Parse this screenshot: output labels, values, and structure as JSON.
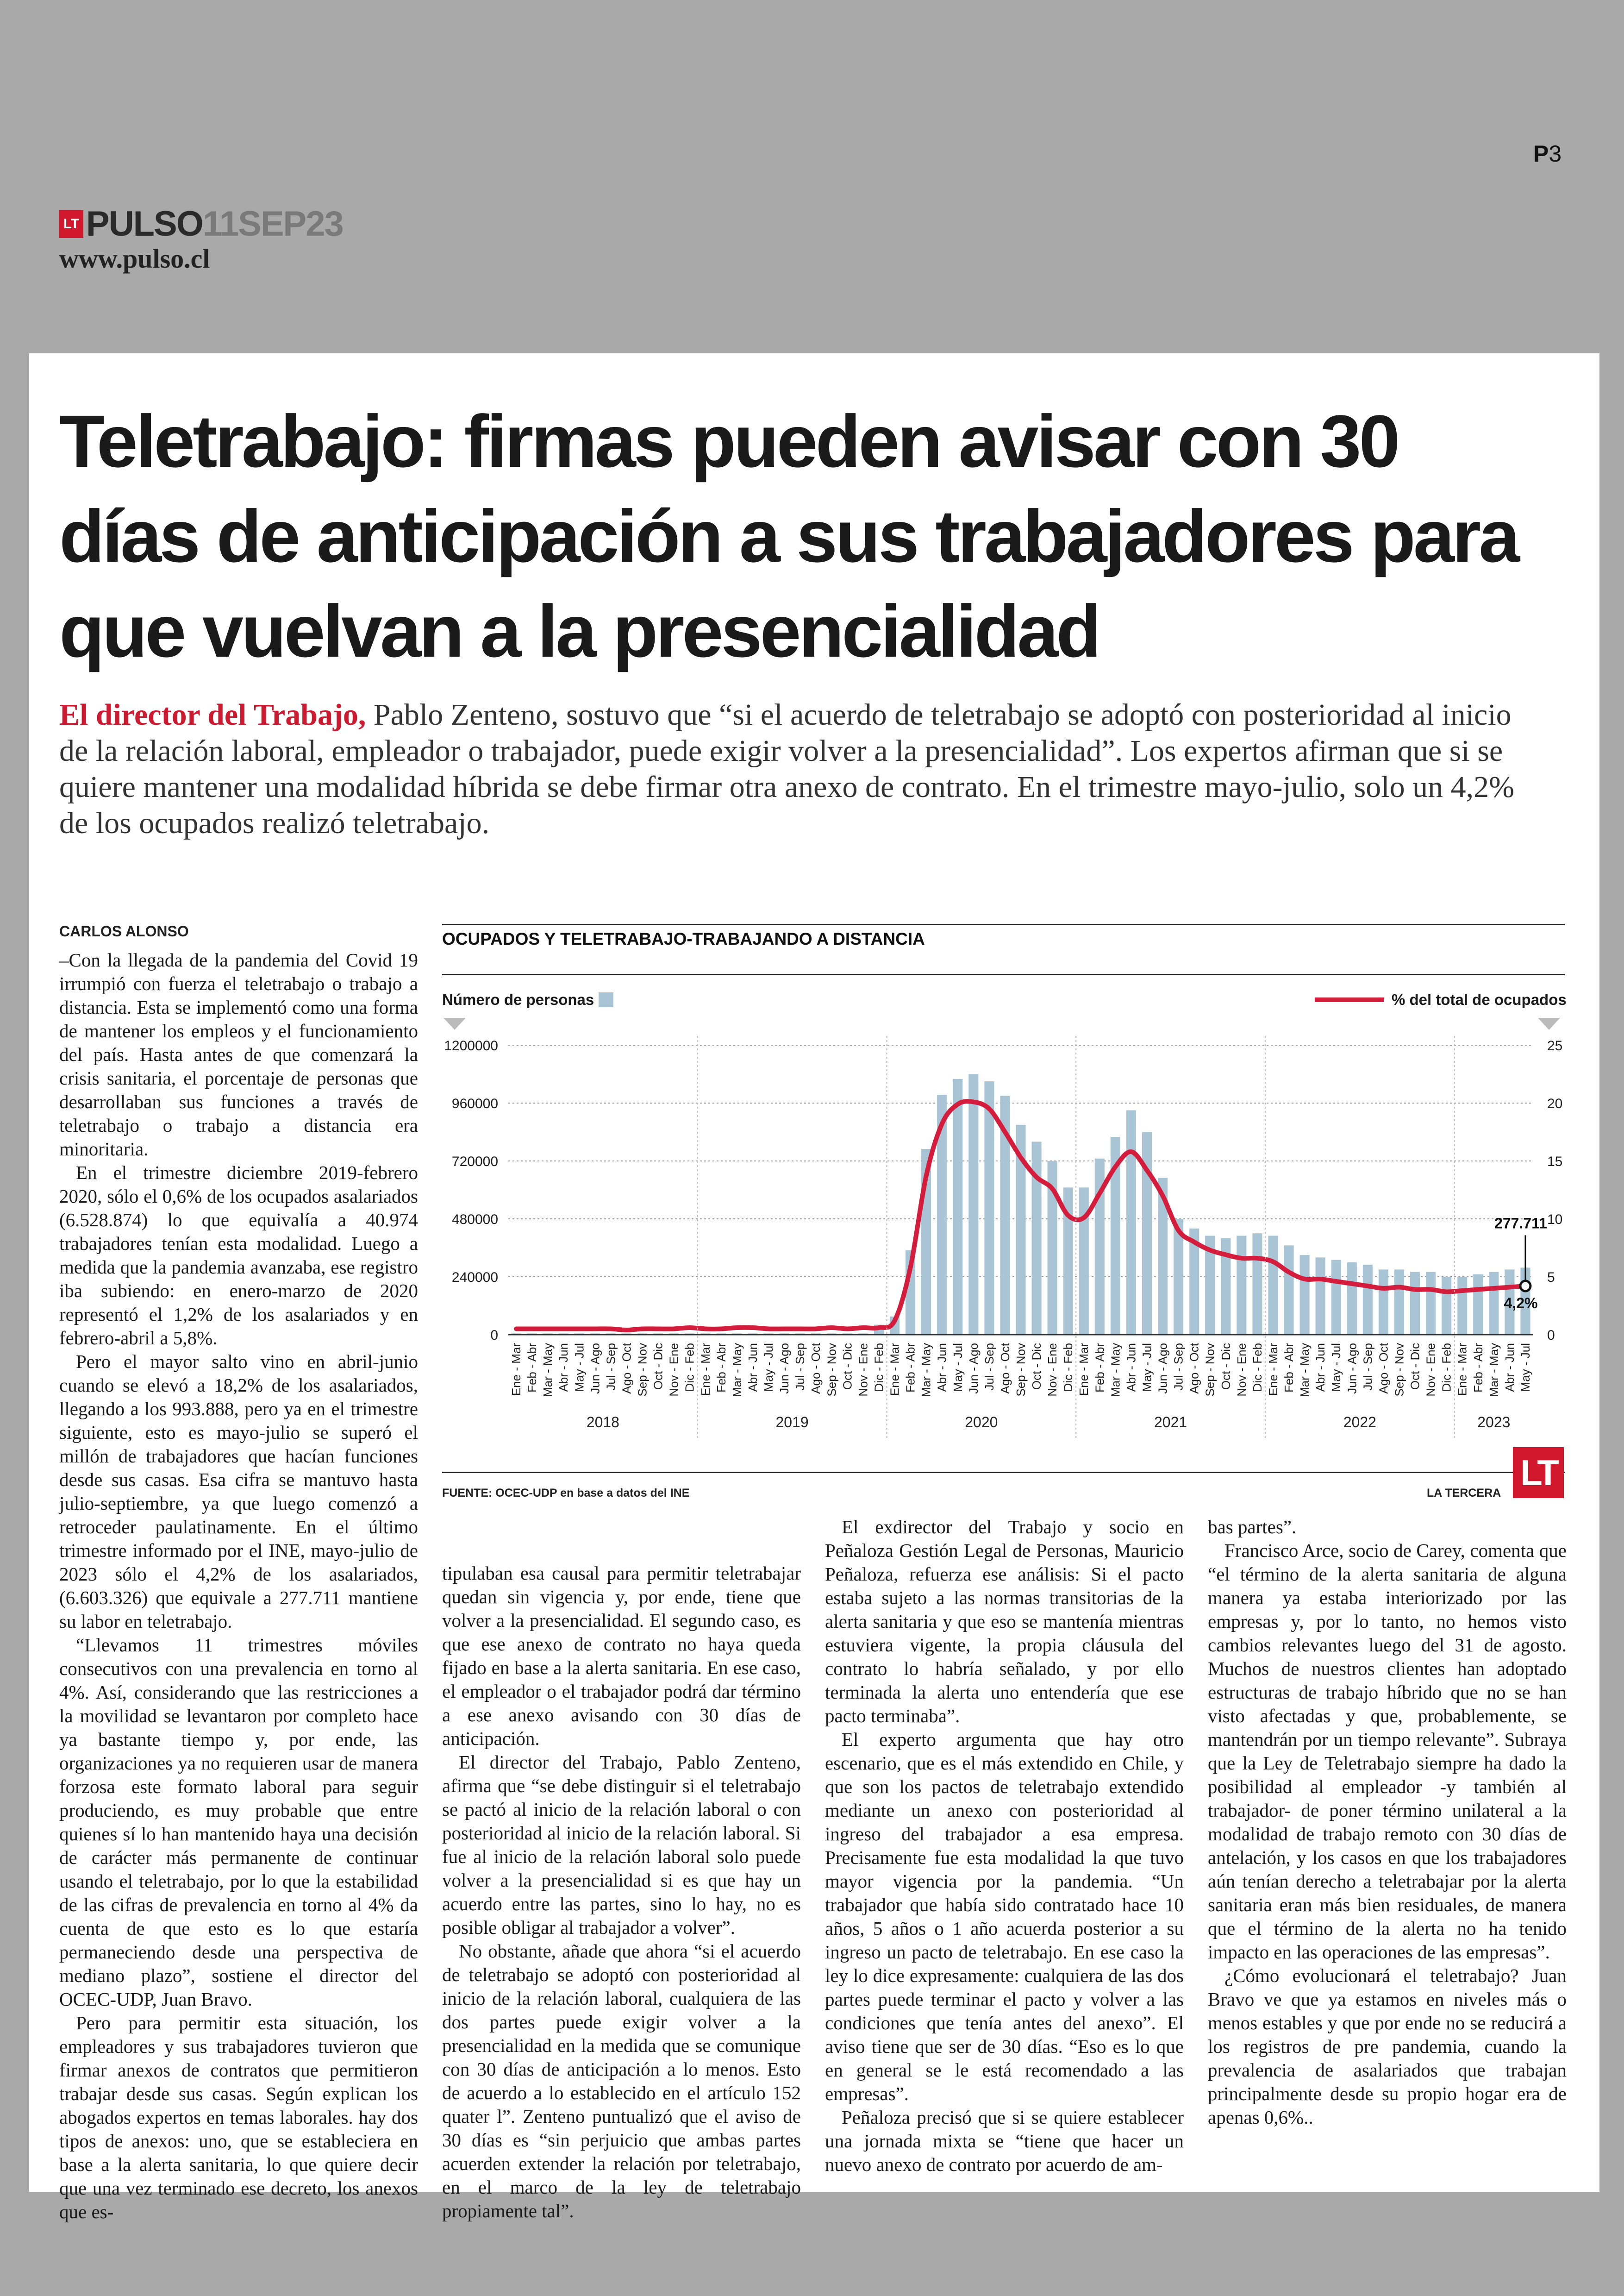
{
  "page": {
    "number_prefix": "P",
    "number": "3"
  },
  "masthead": {
    "logo": "LT",
    "brand": "PULSO",
    "date": "11SEP23",
    "url": "www.pulso.cl"
  },
  "article": {
    "headline": "Teletrabajo: firmas pueden avisar con 30 días de anticipación a sus trabajadores para que vuelvan a la presencialidad",
    "lead_highlight": "El director del Trabajo,",
    "lead_rest": " Pablo Zenteno, sostuvo que “si el acuerdo de teletrabajo se adoptó con posterioridad al inicio de la relación laboral, empleador o trabajador, puede exigir volver a la presencialidad”. Los expertos afirman que si se quiere mantener una modalidad híbrida se debe firmar otra anexo de contrato. En el trimestre mayo-julio, solo un 4,2% de los ocupados realizó teletrabajo.",
    "byline": "CARLOS ALONSO",
    "col1": [
      "–Con la llegada de la pandemia del Covid 19 irrumpió con fuerza el teletrabajo o trabajo a distancia. Esta se implementó como una forma de mantener los empleos y el funcionamiento del país. Hasta antes de que comenzará la crisis sanitaria, el porcentaje de personas que desarrollaban sus funciones a través de teletrabajo o trabajo a distancia era minoritaria.",
      "En el trimestre diciembre 2019-febrero 2020, sólo el 0,6% de los ocupados asalariados (6.528.874) lo que equivalía a 40.974 trabajadores tenían esta modalidad. Luego a medida que la pandemia avanzaba, ese registro iba subiendo: en enero-marzo de 2020 representó el 1,2% de los asalariados y en febrero-abril a 5,8%.",
      "Pero el mayor salto vino en abril-junio cuando se elevó a 18,2% de los asalariados, llegando a los 993.888, pero ya en el trimestre siguiente, esto es mayo-julio se superó el millón de trabajadores que hacían funciones desde sus casas. Esa cifra se mantuvo hasta julio-septiembre, ya que luego comenzó a retroceder paulatinamente. En el último trimestre informado por el INE, mayo-julio de 2023 sólo el 4,2% de los asalariados, (6.603.326) que equivale a 277.711 mantiene su labor en teletrabajo.",
      "“Llevamos 11 trimestres móviles consecutivos con una prevalencia en torno al 4%. Así, considerando que las restricciones a la movilidad se levantaron por completo hace ya bastante tiempo y, por ende, las organizaciones ya no requieren usar de manera forzosa este formato laboral para seguir produciendo, es muy probable que entre quienes sí lo han mantenido haya una decisión de carácter más permanente de continuar usando el teletrabajo, por lo que la estabilidad de las cifras de prevalencia en torno al 4% da cuenta de que esto es lo que estaría permaneciendo desde una perspectiva de mediano plazo”, sostiene el director del OCEC-UDP, Juan Bravo.",
      "Pero para permitir esta situación, los empleadores y sus trabajadores tuvieron que firmar anexos de contratos que permitieron trabajar desde sus casas. Según explican los abogados expertos en temas laborales. hay dos tipos de anexos: uno, que se estableciera en base a la alerta sanitaria, lo que quiere decir que una vez terminado ese decreto, los anexos que es-"
    ],
    "col2": [
      "tipulaban esa causal para permitir teletrabajar quedan sin vigencia y, por ende, tiene que volver a la presencialidad. El segundo caso, es que ese anexo de contrato no haya queda fijado en base a la alerta sanitaria. En ese caso, el empleador o el trabajador podrá dar término a ese anexo avisando con 30 días de anticipación.",
      "El director del Trabajo, Pablo Zenteno, afirma que “se debe distinguir si el teletrabajo se pactó al inicio de la relación laboral o con posterioridad al inicio de la relación laboral. Si fue al inicio de la relación laboral solo puede volver a la presencialidad si es que hay un acuerdo entre las partes, sino lo hay, no es posible obligar al trabajador a volver”.",
      "No obstante, añade que ahora “si el acuerdo de teletrabajo se adoptó con posterioridad al inicio de la relación laboral, cualquiera de las dos partes puede exigir volver a la presencialidad en la medida que se comunique con 30 días de anticipación a lo menos. Esto de acuerdo a lo establecido en el artículo 152 quater l”. Zenteno puntualizó que el aviso de 30 días es “sin perjuicio que ambas partes acuerden extender la relación por teletrabajo, en el marco de la ley de teletrabajo propiamente tal”."
    ],
    "col3": [
      "El exdirector del Trabajo y socio en Peñaloza Gestión Legal de Personas, Mauricio Peñaloza, refuerza ese análisis: Si el pacto estaba sujeto a las normas transitorias de la alerta sanitaria y que eso se mantenía mientras estuviera vigente, la propia cláusula del contrato lo habría señalado, y por ello terminada la alerta uno entendería que ese pacto terminaba”.",
      "El experto argumenta que hay otro escenario, que es el más extendido en Chile, y que son los pactos de teletrabajo extendido mediante un anexo con posterioridad al ingreso del trabajador a esa empresa. Precisamente fue esta modalidad la que tuvo mayor vigencia por la pandemia. “Un trabajador que había sido contratado hace 10 años, 5 años o 1 año acuerda posterior a su ingreso un pacto de teletrabajo. En ese caso la ley lo dice expresamente: cualquiera de las dos partes puede terminar el pacto y volver a las condiciones que tenía antes del anexo”. El aviso tiene que ser de 30 días. “Eso es lo que en general se le está recomendado a las empresas”.",
      "Peñaloza precisó que si se quiere establecer una jornada mixta se “tiene que hacer un nuevo anexo de contrato por acuerdo de am-"
    ],
    "col4": [
      "bas partes”.",
      "Francisco Arce, socio de Carey, comenta que “el término de la alerta sanitaria de alguna manera ya estaba interiorizado por las empresas y, por lo tanto, no hemos visto cambios relevantes luego del 31 de agosto. Muchos de nuestros clientes han adoptado estructuras de trabajo híbrido que no se han visto afectadas y que, probablemente, se mantendrán por un tiempo relevante”. Subraya que la Ley de Teletrabajo siempre ha dado la posibilidad al empleador -y también al trabajador- de poner término unilateral a la modalidad de trabajo remoto con 30 días de antelación, y los casos en que los trabajadores aún tenían derecho a teletrabajar por la alerta sanitaria eran más bien residuales, de manera que el término de la alerta no ha tenido impacto en las operaciones de las empresas”.",
      "¿Cómo evolucionará el teletrabajo? Juan Bravo ve que ya estamos en niveles más o menos estables y que por ende no se reducirá a los registros de pre pandemia, cuando la prevalencia de asalariados que trabajan principalmente desde su propio hogar era de apenas 0,6%.."
    ]
  },
  "chart_data": {
    "type": "bar",
    "title": "OCUPADOS Y TELETRABAJO-TRABAJANDO A DISTANCIA",
    "left_axis_label": "Número de personas",
    "right_axis_label": "% del total de ocupados",
    "colors": {
      "bars": "#a9c4d4",
      "line": "#d41d3c",
      "logo": "#d2182d"
    },
    "ylim_left": [
      0,
      1200000
    ],
    "yticks_left": [
      "0",
      "240000",
      "480000",
      "720000",
      "960000",
      "1200000"
    ],
    "ylim_right": [
      0,
      25
    ],
    "yticks_right": [
      "0",
      "5",
      "10",
      "15",
      "20",
      "25"
    ],
    "categories": [
      "Ene - Mar",
      "Feb - Abr",
      "Mar - May",
      "Abr - Jun",
      "May - Jul",
      "Jun - Ago",
      "Jul - Sep",
      "Ago - Oct",
      "Sep - Nov",
      "Oct - Dic",
      "Nov - Ene",
      "Dic - Feb",
      "Ene - Mar",
      "Feb - Abr",
      "Mar - May",
      "Abr - Jun",
      "May - Jul",
      "Jun - Ago",
      "Jul - Sep",
      "Ago - Oct",
      "Sep - Nov",
      "Oct - Dic",
      "Nov - Ene",
      "Dic - Feb",
      "Ene - Mar",
      "Feb - Abr",
      "Mar - May",
      "Abr - Jun",
      "May - Jul",
      "Jun - Ago",
      "Jul - Sep",
      "Ago - Oct",
      "Sep - Nov",
      "Oct - Dic",
      "Nov - Ene",
      "Dic - Feb",
      "Ene - Mar",
      "Feb - Abr",
      "Mar - May",
      "Abr - Jun",
      "May - Jul",
      "Jun - Ago",
      "Jul - Sep",
      "Ago - Oct",
      "Sep - Nov",
      "Oct - Dic",
      "Nov - Ene",
      "Dic - Feb",
      "Ene - Mar",
      "Feb - Abr",
      "Mar - May",
      "Abr - Jun",
      "May - Jul",
      "Jun - Ago",
      "Jul - Sep",
      "Ago - Oct",
      "Sep - Nov",
      "Oct - Dic",
      "Nov - Ene",
      "Dic - Feb",
      "Ene - Mar",
      "Feb - Abr",
      "Mar - May",
      "Abr - Jun",
      "May - Jul"
    ],
    "years": [
      "2018",
      "2019",
      "2020",
      "2021",
      "2022",
      "2023"
    ],
    "series": [
      {
        "name": "Número de personas",
        "kind": "bar",
        "values": [
          5000,
          5000,
          5000,
          5000,
          5000,
          5000,
          5000,
          5000,
          5000,
          5000,
          5000,
          5000,
          5000,
          5000,
          5000,
          5000,
          5000,
          5000,
          5000,
          5000,
          5000,
          5000,
          5000,
          40974,
          75000,
          350000,
          770000,
          993888,
          1060000,
          1080000,
          1050000,
          990000,
          870000,
          800000,
          720000,
          610000,
          610000,
          730000,
          820000,
          930000,
          840000,
          650000,
          480000,
          440000,
          410000,
          400000,
          410000,
          420000,
          410000,
          370000,
          330000,
          320000,
          310000,
          300000,
          290000,
          270000,
          270000,
          260000,
          260000,
          240000,
          240000,
          250000,
          260000,
          270000,
          277711
        ]
      },
      {
        "name": "% del total de ocupados",
        "kind": "line",
        "values": [
          0.5,
          0.5,
          0.5,
          0.5,
          0.5,
          0.5,
          0.5,
          0.4,
          0.5,
          0.5,
          0.5,
          0.6,
          0.5,
          0.5,
          0.6,
          0.6,
          0.5,
          0.5,
          0.5,
          0.5,
          0.6,
          0.5,
          0.6,
          0.6,
          1.2,
          5.8,
          13.7,
          18.2,
          19.9,
          20.1,
          19.5,
          17.5,
          15.3,
          13.6,
          12.6,
          10.3,
          10.1,
          12.2,
          14.5,
          15.8,
          14.2,
          12.0,
          9.0,
          8.0,
          7.3,
          6.9,
          6.6,
          6.6,
          6.3,
          5.4,
          4.8,
          4.8,
          4.6,
          4.4,
          4.2,
          4.0,
          4.1,
          3.9,
          3.9,
          3.7,
          3.8,
          3.9,
          4.0,
          4.1,
          4.2
        ]
      }
    ],
    "annotation_value": "277.711",
    "annotation_pct": "4,2%"
  },
  "chart_labels": {
    "source": "FUENTE: OCEC-UDP en base a datos del INE",
    "credit": "LA TERCERA",
    "logo": "LT"
  }
}
